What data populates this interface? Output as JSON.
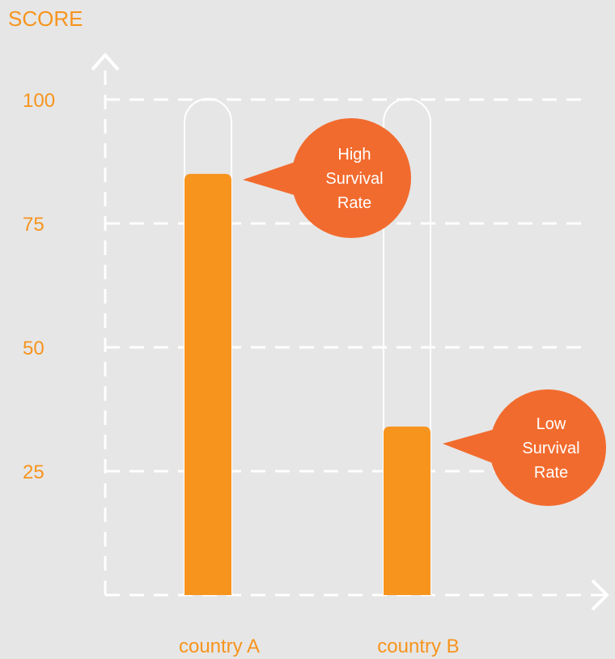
{
  "chart_data": {
    "type": "bar",
    "ylabel": "SCORE",
    "categories": [
      "country A",
      "country B"
    ],
    "values": [
      85,
      34
    ],
    "ylim": [
      0,
      100
    ],
    "yticks": [
      25,
      50,
      75,
      100
    ],
    "grid": true,
    "annotations": [
      {
        "target": "country A",
        "lines": [
          "High",
          "Survival",
          "Rate"
        ]
      },
      {
        "target": "country B",
        "lines": [
          "Low",
          "Survival",
          "Rate"
        ]
      }
    ]
  },
  "colors": {
    "background": "#e6e6e6",
    "label": "#f7941d",
    "bar": "#f7941d",
    "callout": "#f26b2e",
    "grid": "#ffffff"
  }
}
